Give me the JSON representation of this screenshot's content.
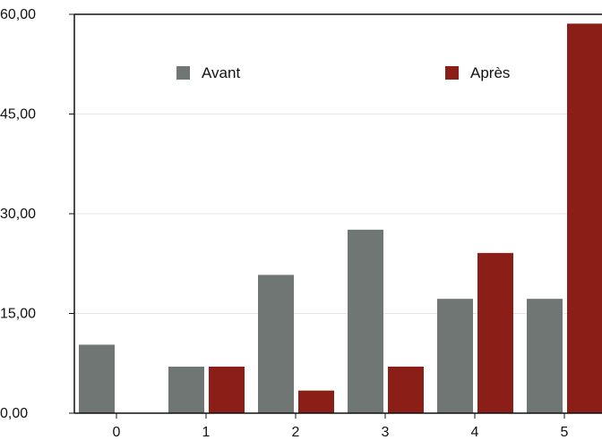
{
  "chart_data": {
    "type": "bar",
    "title": "",
    "xlabel": "",
    "ylabel": "",
    "categories": [
      "0",
      "1",
      "2",
      "3",
      "4",
      "5"
    ],
    "series": [
      {
        "name": "Avant",
        "color": "#707673",
        "values": [
          10.3,
          7.0,
          20.8,
          27.6,
          17.2,
          17.2
        ]
      },
      {
        "name": "Après",
        "color": "#8b1f18",
        "values": [
          0,
          7.0,
          3.4,
          7.0,
          24.1,
          58.6
        ]
      }
    ],
    "ylim": [
      0,
      60
    ],
    "yticks": [
      0,
      15,
      30,
      45,
      60
    ],
    "ytick_labels": [
      "0,00",
      "15,00",
      "30,00",
      "45,00",
      "60,00"
    ],
    "grid": true,
    "legend_position": "top"
  }
}
